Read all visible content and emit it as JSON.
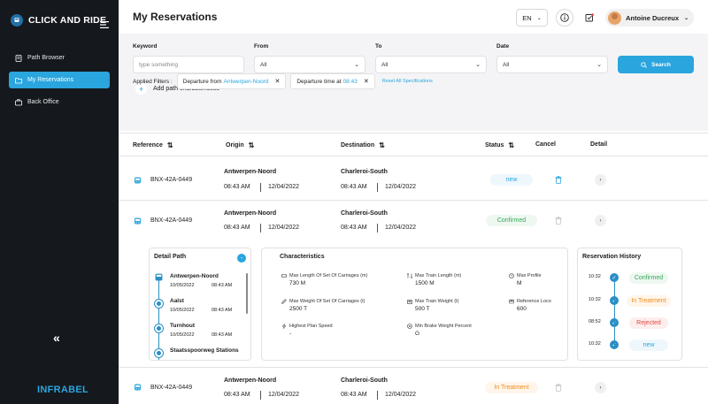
{
  "app": {
    "name": "CLICK AND RIDE",
    "footer_logo": "INFRABEL"
  },
  "sidebar": {
    "items": [
      {
        "label": "Path Browser",
        "icon": "document-icon"
      },
      {
        "label": "My Reservations",
        "icon": "folder-icon"
      },
      {
        "label": "Back Office",
        "icon": "briefcase-icon"
      }
    ],
    "collapse_glyph": "«"
  },
  "header": {
    "title": "My Reservations",
    "language": "EN",
    "user_name": "Antoine Ducreux"
  },
  "filters": {
    "keyword_label": "Keyword",
    "keyword_placeholder": "type something",
    "from_label": "From",
    "from_value": "All",
    "to_label": "To",
    "to_value": "All",
    "date_label": "Date",
    "date_value": "All",
    "search_label": "Search",
    "add_label": "Add path characteristics",
    "applied_label": "Applied Filters :",
    "chip1_prefix": "Departure from",
    "chip1_value": "Antwerpen-Noord",
    "chip2_prefix": "Departure time at",
    "chip2_value": "08:43",
    "reset_label": "Reset All Specifications"
  },
  "table": {
    "columns": [
      "Reference",
      "Origin",
      "Destination",
      "Status",
      "Cancel",
      "Detail"
    ],
    "rows": [
      {
        "ref": "BNX-42A-0449",
        "origin": "Antwerpen-Noord",
        "o_time": "08:43 AM",
        "o_date": "12/04/2022",
        "dest": "Charleroi-South",
        "d_time": "08:43 AM",
        "d_date": "12/04/2022",
        "status": "new"
      },
      {
        "ref": "BNX-42A-0449",
        "origin": "Antwerpen-Noord",
        "o_time": "08:43 AM",
        "o_date": "12/04/2022",
        "dest": "Charleroi-South",
        "d_time": "08:43 AM",
        "d_date": "12/04/2022",
        "status": "Confirmed"
      },
      {
        "ref": "BNX-42A-0449",
        "origin": "Antwerpen-Noord",
        "o_time": "08:43 AM",
        "o_date": "12/04/2022",
        "dest": "Charleroi-South",
        "d_time": "08:43 AM",
        "d_date": "12/04/2022",
        "status": "In Treatment"
      }
    ]
  },
  "detail_path": {
    "title": "Detail Path",
    "collapse_glyph": "-",
    "stops": [
      {
        "name": "Antwerpen-Noord",
        "date": "10/05/2022",
        "time": "08:43 AM"
      },
      {
        "name": "Aalst",
        "date": "10/05/2022",
        "time": "08:43 AM"
      },
      {
        "name": "Turnhout",
        "date": "10/05/2022",
        "time": "08:43 AM"
      },
      {
        "name": "Staatsspoorweg Stations"
      }
    ]
  },
  "characteristics": {
    "title": "Characteristics",
    "items": [
      {
        "label": "Max Length Of Set Of Carriages (m)",
        "value": "730 M"
      },
      {
        "label": "Max Train Length (m)",
        "value": "1500 M"
      },
      {
        "label": "Max Profile",
        "value": "M"
      },
      {
        "label": "Max Weight Of Set Of Carriages (t)",
        "value": "2500 T"
      },
      {
        "label": "Max Train Weight (t)",
        "value": "500 T"
      },
      {
        "label": "Reference Loco",
        "value": "600"
      },
      {
        "label": "Highest Plan Speed",
        "value": "-"
      },
      {
        "label": "Min Brake Weight Percent",
        "value": "G"
      }
    ]
  },
  "history": {
    "title": "Reservation History",
    "check_glyph": "✓",
    "items": [
      {
        "time": "10:32",
        "status": "Confirmed"
      },
      {
        "time": "10:32",
        "status": "In Treatment"
      },
      {
        "time": "08:52",
        "status": "Rejected"
      },
      {
        "time": "10:32",
        "status": "new"
      }
    ]
  },
  "colors": {
    "accent": "#2aa5de",
    "sidebar": "#15181d",
    "confirmed": "#3aa55c",
    "treatment": "#f08c1a",
    "rejected": "#e0483e"
  }
}
